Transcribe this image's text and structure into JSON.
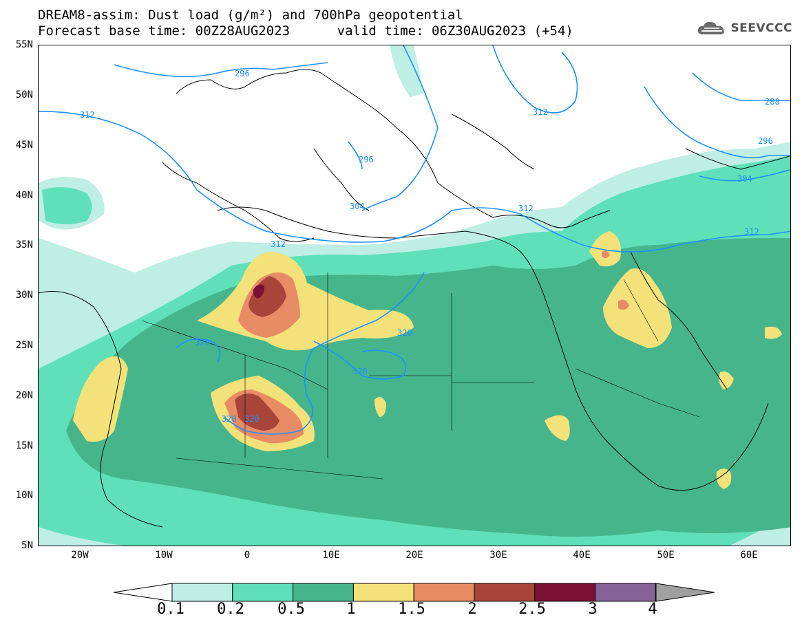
{
  "title": {
    "line1": "DREAM8-assim: Dust load (g/m²) and 700hPa geopotential",
    "line2": "Forecast base time: 00Z28AUG2023      valid time: 06Z30AUG2023 (+54)"
  },
  "logo": {
    "text": "SEEVCCC",
    "icon": "cloud-icon"
  },
  "axes": {
    "lat_labels": [
      "55N",
      "50N",
      "45N",
      "40N",
      "35N",
      "30N",
      "25N",
      "20N",
      "15N",
      "10N",
      "5N"
    ],
    "lon_labels": [
      "20W",
      "10W",
      "0",
      "10E",
      "20E",
      "30E",
      "40E",
      "50E",
      "60E"
    ]
  },
  "colors": {
    "levels": [
      "#bfeee5",
      "#5fe0b8",
      "#46b58c",
      "#f3e27a",
      "#e88c66",
      "#a8453a",
      "#7a1033",
      "#876497"
    ],
    "contour": "#1e90ff",
    "coast": "#000000"
  },
  "colorbar": {
    "labels": [
      "0.1",
      "0.2",
      "0.5",
      "1",
      "1.5",
      "2",
      "2.5",
      "3",
      "4"
    ],
    "over_color": "#a0a0a0"
  },
  "contour_labels": [
    {
      "text": "296"
    },
    {
      "text": "312"
    },
    {
      "text": "312"
    },
    {
      "text": "288"
    },
    {
      "text": "296"
    },
    {
      "text": "296"
    },
    {
      "text": "304"
    },
    {
      "text": "312"
    },
    {
      "text": "304"
    },
    {
      "text": "312"
    },
    {
      "text": "312"
    },
    {
      "text": "320"
    },
    {
      "text": "320"
    },
    {
      "text": "320"
    },
    {
      "text": "320"
    },
    {
      "text": "320"
    }
  ]
}
